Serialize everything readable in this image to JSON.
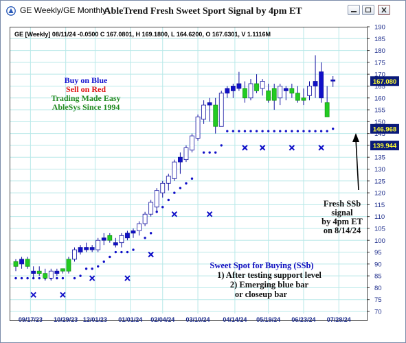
{
  "window": {
    "title": "GE Weekly/GE Monthly",
    "chart_title": "AbleTrend Fresh Sweet Sport Signal by 4pm ET"
  },
  "colors": {
    "blue_bar": "#1010c8",
    "green_bar": "#22cc22",
    "marker": "#1010c8",
    "grid": "#b8e8e8",
    "label_bg": "#0a1a7a",
    "label_fg": "#ffff33"
  },
  "icons": [
    "app-icon",
    "minimize-icon",
    "maximize-icon",
    "close-icon",
    "signal-arrow-icon"
  ],
  "chart_data": {
    "type": "candlestick",
    "info_line": "GE [Weekly] 08/11/24  -0.0500 C 167.0801, H 169.1800, L 164.6200, O 167.6301, V 1.1116M",
    "ylim": [
      70,
      190
    ],
    "y_ticks": [
      70,
      75,
      80,
      85,
      90,
      95,
      100,
      105,
      110,
      115,
      120,
      125,
      130,
      135,
      140,
      145,
      150,
      155,
      160,
      165,
      170,
      175,
      180,
      185,
      190
    ],
    "x_ticks": [
      "09/17/23",
      "10/29/23",
      "12/01/23",
      "01/01/24",
      "02/04/24",
      "03/10/24",
      "04/14/24",
      "05/19/24",
      "06/23/24",
      "07/28/24"
    ],
    "price_labels": [
      "167.080",
      "146.968",
      "139.944"
    ],
    "legend_lines": [
      {
        "text": "Buy on Blue",
        "color": "#1010d0"
      },
      {
        "text": "Sell on Red",
        "color": "#e01010"
      },
      {
        "text": "Trading Made Easy",
        "color": "#228b22"
      },
      {
        "text": "AbleSys Since 1994",
        "color": "#228b22"
      }
    ],
    "annotation_ssb": [
      "Sweet Spot for Buying (SSb)",
      "1) After testing support level",
      "2) Emerging blue bar",
      "or closeup bar"
    ],
    "annotation_fresh": [
      "Fresh SSb",
      "signal",
      "by 4pm ET",
      "on 8/14/24"
    ],
    "candles": [
      {
        "o": 89,
        "h": 92,
        "l": 87,
        "c": 91,
        "col": "green"
      },
      {
        "o": 90,
        "h": 93,
        "l": 88,
        "c": 92,
        "col": "blue"
      },
      {
        "o": 92,
        "h": 93,
        "l": 88,
        "c": 89,
        "col": "green"
      },
      {
        "o": 86,
        "h": 89,
        "l": 84,
        "c": 87,
        "col": "blue"
      },
      {
        "o": 87,
        "h": 89,
        "l": 85,
        "c": 86,
        "col": "green"
      },
      {
        "o": 86,
        "h": 88,
        "l": 83,
        "c": 84,
        "col": "green"
      },
      {
        "o": 84,
        "h": 88,
        "l": 83,
        "c": 87,
        "col": "blue"
      },
      {
        "o": 86,
        "h": 88,
        "l": 85,
        "c": 87,
        "col": "blue"
      },
      {
        "o": 87,
        "h": 88,
        "l": 86,
        "c": 88,
        "col": "green"
      },
      {
        "o": 87,
        "h": 93,
        "l": 86,
        "c": 92,
        "col": "green"
      },
      {
        "o": 92,
        "h": 97,
        "l": 91,
        "c": 96,
        "col": "blue"
      },
      {
        "o": 95,
        "h": 98,
        "l": 94,
        "c": 97,
        "col": "blue"
      },
      {
        "o": 96,
        "h": 99,
        "l": 95,
        "c": 97,
        "col": "blue"
      },
      {
        "o": 97,
        "h": 98,
        "l": 95,
        "c": 96,
        "col": "blue"
      },
      {
        "o": 96,
        "h": 101,
        "l": 95,
        "c": 100,
        "col": "blue"
      },
      {
        "o": 100,
        "h": 103,
        "l": 98,
        "c": 101,
        "col": "blue"
      },
      {
        "o": 102,
        "h": 103,
        "l": 99,
        "c": 100,
        "col": "green"
      },
      {
        "o": 98,
        "h": 101,
        "l": 97,
        "c": 99,
        "col": "blue"
      },
      {
        "o": 99,
        "h": 103,
        "l": 97,
        "c": 102,
        "col": "blue"
      },
      {
        "o": 101,
        "h": 104,
        "l": 100,
        "c": 103,
        "col": "blue"
      },
      {
        "o": 103,
        "h": 105,
        "l": 101,
        "c": 104,
        "col": "blue"
      },
      {
        "o": 104,
        "h": 108,
        "l": 102,
        "c": 107,
        "col": "blue"
      },
      {
        "o": 107,
        "h": 112,
        "l": 106,
        "c": 111,
        "col": "blue"
      },
      {
        "o": 111,
        "h": 117,
        "l": 110,
        "c": 116,
        "col": "blue"
      },
      {
        "o": 114,
        "h": 122,
        "l": 112,
        "c": 121,
        "col": "blue"
      },
      {
        "o": 120,
        "h": 125,
        "l": 118,
        "c": 124,
        "col": "blue"
      },
      {
        "o": 124,
        "h": 128,
        "l": 121,
        "c": 127,
        "col": "blue"
      },
      {
        "o": 126,
        "h": 134,
        "l": 125,
        "c": 133,
        "col": "blue"
      },
      {
        "o": 133,
        "h": 137,
        "l": 128,
        "c": 135,
        "col": "blue"
      },
      {
        "o": 134,
        "h": 140,
        "l": 133,
        "c": 139,
        "col": "blue"
      },
      {
        "o": 138,
        "h": 145,
        "l": 137,
        "c": 144,
        "col": "blue"
      },
      {
        "o": 143,
        "h": 153,
        "l": 142,
        "c": 152,
        "col": "blue"
      },
      {
        "o": 151,
        "h": 159,
        "l": 149,
        "c": 157,
        "col": "blue"
      },
      {
        "o": 157,
        "h": 160,
        "l": 150,
        "c": 158,
        "col": "blue"
      },
      {
        "o": 157,
        "h": 160,
        "l": 145,
        "c": 148,
        "col": "green"
      },
      {
        "o": 148,
        "h": 163,
        "l": 148,
        "c": 162,
        "col": "blue"
      },
      {
        "o": 162,
        "h": 165,
        "l": 160,
        "c": 164,
        "col": "blue"
      },
      {
        "o": 163,
        "h": 166,
        "l": 160,
        "c": 165,
        "col": "blue"
      },
      {
        "o": 166,
        "h": 171,
        "l": 163,
        "c": 164,
        "col": "blue"
      },
      {
        "o": 164,
        "h": 167,
        "l": 158,
        "c": 160,
        "col": "green"
      },
      {
        "o": 160,
        "h": 168,
        "l": 159,
        "c": 166,
        "col": "blue"
      },
      {
        "o": 166,
        "h": 170,
        "l": 162,
        "c": 163,
        "col": "green"
      },
      {
        "o": 164,
        "h": 168,
        "l": 161,
        "c": 167,
        "col": "blue"
      },
      {
        "o": 163,
        "h": 166,
        "l": 158,
        "c": 159,
        "col": "green"
      },
      {
        "o": 159,
        "h": 166,
        "l": 155,
        "c": 164,
        "col": "green"
      },
      {
        "o": 160,
        "h": 166,
        "l": 157,
        "c": 165,
        "col": "blue"
      },
      {
        "o": 163,
        "h": 165,
        "l": 159,
        "c": 164,
        "col": "blue"
      },
      {
        "o": 164,
        "h": 166,
        "l": 160,
        "c": 162,
        "col": "green"
      },
      {
        "o": 159,
        "h": 165,
        "l": 158,
        "c": 162,
        "col": "green"
      },
      {
        "o": 159,
        "h": 164,
        "l": 157,
        "c": 160,
        "col": "green"
      },
      {
        "o": 161,
        "h": 167,
        "l": 159,
        "c": 165,
        "col": "blue"
      },
      {
        "o": 165,
        "h": 178,
        "l": 160,
        "c": 167,
        "col": "blue"
      },
      {
        "o": 171,
        "h": 175,
        "l": 158,
        "c": 160,
        "col": "blue"
      },
      {
        "o": 158,
        "h": 165,
        "l": 152,
        "c": 152,
        "col": "green"
      },
      {
        "o": 167.6301,
        "h": 169.18,
        "l": 164.62,
        "c": 167.0801,
        "col": "blue"
      }
    ],
    "support_dots": [
      {
        "i": 0,
        "v": 84
      },
      {
        "i": 1,
        "v": 84
      },
      {
        "i": 2,
        "v": 84
      },
      {
        "i": 3,
        "v": 84
      },
      {
        "i": 4,
        "v": 84
      },
      {
        "i": 5,
        "v": 84
      },
      {
        "i": 6,
        "v": 84
      },
      {
        "i": 7,
        "v": 84
      },
      {
        "i": 8,
        "v": 84
      },
      {
        "i": 10,
        "v": 84
      },
      {
        "i": 11,
        "v": 85
      },
      {
        "i": 12,
        "v": 88
      },
      {
        "i": 13,
        "v": 88
      },
      {
        "i": 14,
        "v": 89
      },
      {
        "i": 15,
        "v": 91
      },
      {
        "i": 16,
        "v": 93
      },
      {
        "i": 17,
        "v": 95
      },
      {
        "i": 18,
        "v": 95
      },
      {
        "i": 19,
        "v": 95
      },
      {
        "i": 20,
        "v": 96
      },
      {
        "i": 22,
        "v": 101
      },
      {
        "i": 23,
        "v": 103
      },
      {
        "i": 24,
        "v": 112
      },
      {
        "i": 25,
        "v": 114
      },
      {
        "i": 26,
        "v": 117
      },
      {
        "i": 27,
        "v": 120
      },
      {
        "i": 28,
        "v": 122
      },
      {
        "i": 29,
        "v": 124
      },
      {
        "i": 30,
        "v": 126
      },
      {
        "i": 32,
        "v": 137
      },
      {
        "i": 33,
        "v": 137
      },
      {
        "i": 34,
        "v": 137
      },
      {
        "i": 35,
        "v": 140
      },
      {
        "i": 36,
        "v": 146
      },
      {
        "i": 37,
        "v": 146
      },
      {
        "i": 38,
        "v": 146
      },
      {
        "i": 39,
        "v": 146
      },
      {
        "i": 40,
        "v": 146
      },
      {
        "i": 41,
        "v": 146
      },
      {
        "i": 42,
        "v": 146
      },
      {
        "i": 43,
        "v": 146
      },
      {
        "i": 44,
        "v": 146
      },
      {
        "i": 45,
        "v": 146
      },
      {
        "i": 46,
        "v": 146
      },
      {
        "i": 47,
        "v": 146
      },
      {
        "i": 48,
        "v": 146
      },
      {
        "i": 49,
        "v": 146
      },
      {
        "i": 50,
        "v": 146
      },
      {
        "i": 51,
        "v": 146
      },
      {
        "i": 52,
        "v": 146
      },
      {
        "i": 53,
        "v": 146
      },
      {
        "i": 54,
        "v": 147
      }
    ],
    "x_markers": [
      {
        "i": 3,
        "v": 77
      },
      {
        "i": 8,
        "v": 77
      },
      {
        "i": 13,
        "v": 84
      },
      {
        "i": 19,
        "v": 84
      },
      {
        "i": 23,
        "v": 94
      },
      {
        "i": 27,
        "v": 111
      },
      {
        "i": 33,
        "v": 111
      },
      {
        "i": 39,
        "v": 139
      },
      {
        "i": 42,
        "v": 139
      },
      {
        "i": 47,
        "v": 139
      },
      {
        "i": 52,
        "v": 139
      }
    ]
  }
}
